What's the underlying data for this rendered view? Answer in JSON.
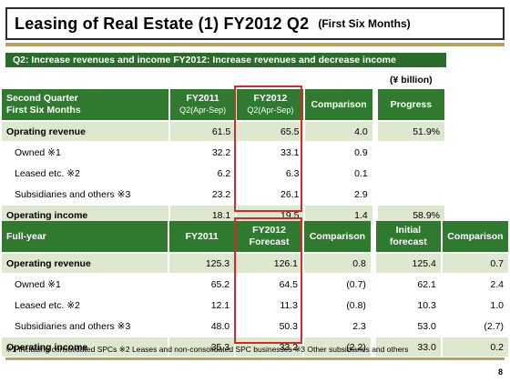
{
  "title": {
    "main": "Leasing of Real Estate (1) FY2012 Q2",
    "sub": "(First Six Months)"
  },
  "banner": "Q2: Increase revenues and income FY2012: Increase revenues and decrease income",
  "unit": "(¥ billion)",
  "table1": {
    "header": {
      "label_line1": "Second Quarter",
      "label_line2": "First Six Months",
      "fy2011": "FY2011",
      "fy2011_sub": "Q2(Apr-Sep)",
      "fy2012": "FY2012",
      "fy2012_sub": "Q2(Apr-Sep)",
      "comparison": "Comparison",
      "progress": "Progress"
    },
    "rows": [
      {
        "label": "Oprating revenue",
        "fy2011": "61.5",
        "fy2012": "65.5",
        "comparison": "4.0",
        "progress": "51.9%"
      },
      {
        "label": "Owned ※1",
        "fy2011": "32.2",
        "fy2012": "33.1",
        "comparison": "0.9",
        "progress": ""
      },
      {
        "label": "Leased etc. ※2",
        "fy2011": "6.2",
        "fy2012": "6.3",
        "comparison": "0.1",
        "progress": ""
      },
      {
        "label": "Subsidiaries and others ※3",
        "fy2011": "23.2",
        "fy2012": "26.1",
        "comparison": "2.9",
        "progress": ""
      },
      {
        "label": "Operating income",
        "fy2011": "18.1",
        "fy2012": "19.5",
        "comparison": "1.4",
        "progress": "58.9%"
      }
    ]
  },
  "table2": {
    "header": {
      "label": "Full-year",
      "fy2011": "FY2011",
      "fy2012": "FY2012",
      "fy2012_sub": "Forecast",
      "comparison": "Comparison",
      "initial_line1": "Initial",
      "initial_line2": "forecast",
      "comparison2": "Comparison"
    },
    "rows": [
      {
        "label": "Operating revenue",
        "fy2011": "125.3",
        "fy2012": "126.1",
        "comparison": "0.8",
        "initial": "125.4",
        "comparison2": "0.7"
      },
      {
        "label": "Owned ※1",
        "fy2011": "65.2",
        "fy2012": "64.5",
        "comparison": "(0.7)",
        "initial": "62.1",
        "comparison2": "2.4"
      },
      {
        "label": "Leased etc. ※2",
        "fy2011": "12.1",
        "fy2012": "11.3",
        "comparison": "(0.8)",
        "initial": "10.3",
        "comparison2": "1.0"
      },
      {
        "label": "Subsidiaries and others ※3",
        "fy2011": "48.0",
        "fy2012": "50.3",
        "comparison": "2.3",
        "initial": "53.0",
        "comparison2": "(2.7)"
      },
      {
        "label": "Operating income",
        "fy2011": "35.3",
        "fy2012": "33.2",
        "comparison": "(2.2)",
        "initial": "33.0",
        "comparison2": "0.2"
      }
    ]
  },
  "footnote": "※1 Including consolidated SPCs ※2 Leases and non-consolidated SPC businesses ※3 Other subsidiaries and others",
  "page_number": "8"
}
